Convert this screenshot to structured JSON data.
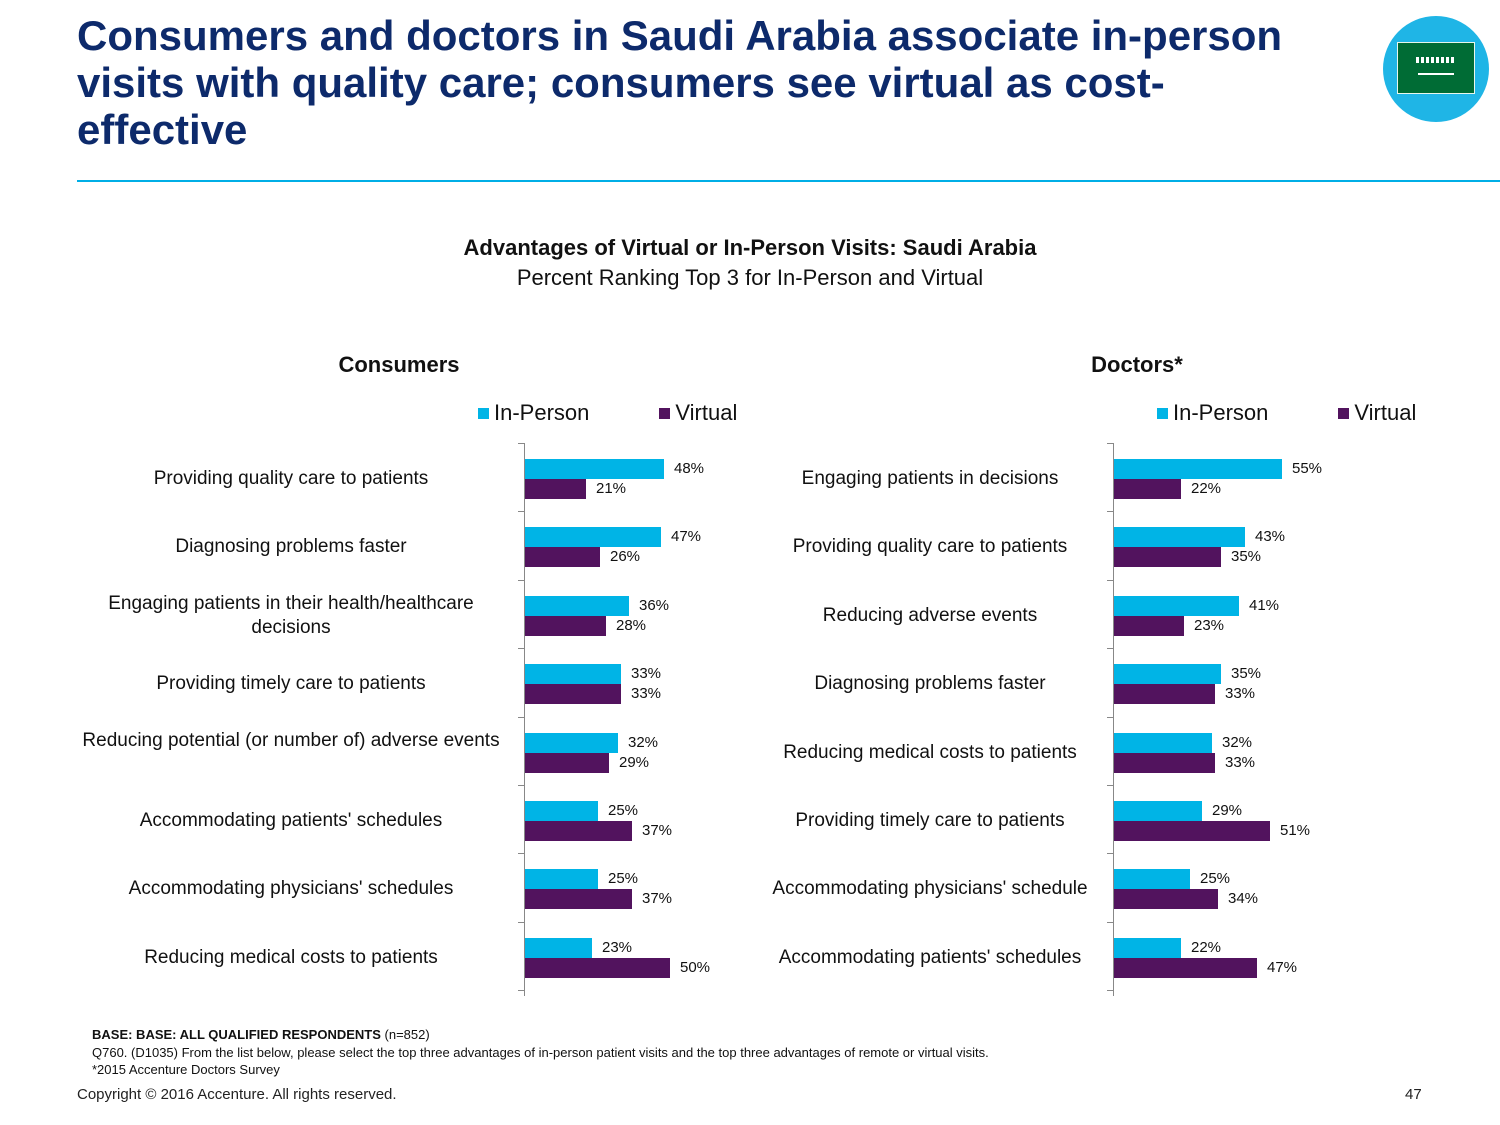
{
  "headline": "Consumers and doctors in Saudi Arabia associate in-person visits with quality care; consumers see virtual as cost-effective",
  "flag_icon": "saudi-arabia-flag-icon",
  "colors": {
    "in_person": "#00b4e6",
    "virtual": "#52135e",
    "headline": "#0d2a6b",
    "rule": "#00aee6"
  },
  "chart_data": [
    {
      "type": "bar",
      "orientation": "horizontal",
      "title": "Advantages of Virtual or In-Person Visits: Saudi Arabia",
      "subtitle": "Percent Ranking Top 3 for In-Person and Virtual",
      "panel": "Consumers",
      "legend": [
        "In-Person",
        "Virtual"
      ],
      "legend_position": "top",
      "unit": "%",
      "xlim": [
        0,
        100
      ],
      "categories": [
        "Providing quality care to patients",
        "Diagnosing problems faster",
        "Engaging patients in their health/healthcare decisions",
        "Providing timely care to patients",
        "Reducing potential (or number of) adverse events",
        "Accommodating patients' schedules",
        "Accommodating physicians' schedules",
        "Reducing medical costs to patients"
      ],
      "series": [
        {
          "name": "In-Person",
          "values": [
            48,
            47,
            36,
            33,
            32,
            25,
            25,
            23
          ]
        },
        {
          "name": "Virtual",
          "values": [
            21,
            26,
            28,
            33,
            29,
            37,
            37,
            50
          ]
        }
      ]
    },
    {
      "type": "bar",
      "orientation": "horizontal",
      "panel": "Doctors*",
      "legend": [
        "In-Person",
        "Virtual"
      ],
      "legend_position": "top",
      "unit": "%",
      "xlim": [
        0,
        100
      ],
      "categories": [
        "Engaging patients in decisions",
        "Providing quality care to patients",
        "Reducing adverse events",
        "Diagnosing problems faster",
        "Reducing medical costs to patients",
        "Providing timely care to patients",
        "Accommodating physicians' schedule",
        "Accommodating patients' schedules"
      ],
      "series": [
        {
          "name": "In-Person",
          "values": [
            55,
            43,
            41,
            35,
            32,
            29,
            25,
            22
          ]
        },
        {
          "name": "Virtual",
          "values": [
            22,
            35,
            23,
            33,
            33,
            51,
            34,
            47
          ]
        }
      ]
    }
  ],
  "footer": {
    "base_label": "BASE: BASE: ALL QUALIFIED RESPONDENTS",
    "base_n": " (n=852)",
    "question": "Q760. (D1035)  From the list below, please select the top three advantages of in-person patient visits and the top three advantages of remote or virtual visits.",
    "source": "*2015 Accenture Doctors Survey",
    "copyright": "Copyright © 2016 Accenture. All rights reserved.",
    "page_number": "47"
  }
}
